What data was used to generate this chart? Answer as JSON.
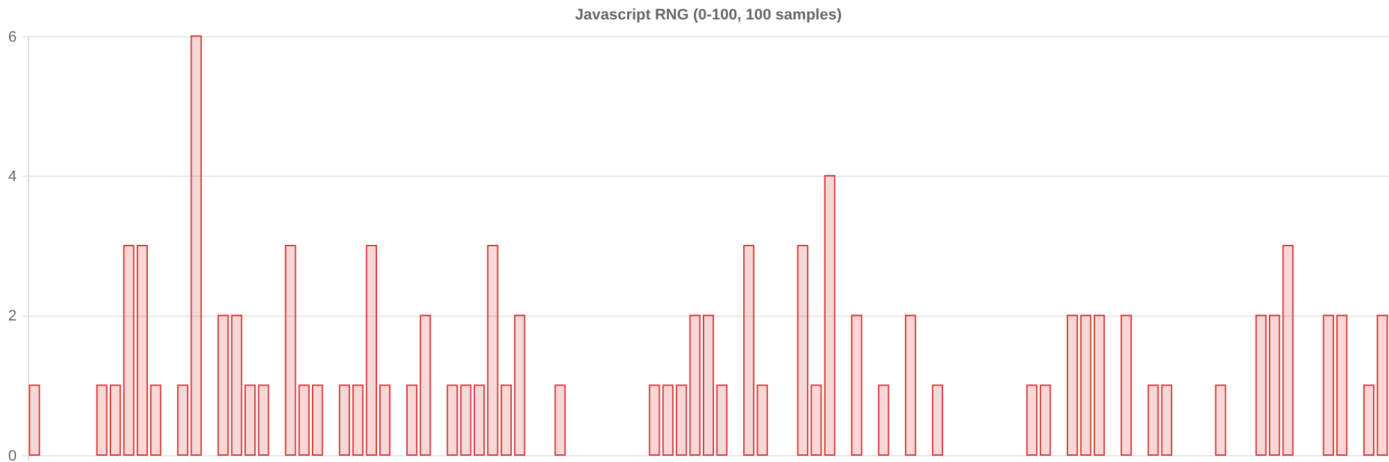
{
  "chart_data": {
    "type": "bar",
    "title": "Javascript RNG (0-100, 100 samples)",
    "categories": [
      null,
      null,
      null,
      null,
      null,
      null,
      null,
      null,
      null,
      null,
      null,
      null,
      null,
      null,
      null,
      null,
      null,
      null,
      null,
      null,
      null,
      null,
      null,
      null,
      null,
      null,
      null,
      null,
      null,
      null,
      null,
      null,
      null,
      null,
      null,
      null,
      null,
      null,
      null,
      null,
      null,
      null,
      null,
      null,
      null,
      null,
      null,
      null,
      null,
      null,
      null,
      null,
      null,
      null,
      null,
      null,
      null,
      null,
      null,
      null,
      null,
      null,
      null,
      null,
      null,
      null,
      null,
      null,
      null,
      null,
      null,
      null,
      null,
      null,
      null,
      null,
      null,
      null,
      null,
      null,
      null,
      null,
      null,
      null,
      null,
      null,
      null,
      null,
      null,
      null,
      null,
      null,
      null,
      null,
      null,
      null,
      null,
      null,
      null,
      null,
      null
    ],
    "values": [
      1,
      0,
      0,
      0,
      0,
      1,
      1,
      3,
      3,
      1,
      0,
      1,
      6,
      0,
      2,
      2,
      1,
      1,
      0,
      3,
      1,
      1,
      0,
      1,
      1,
      3,
      1,
      0,
      1,
      2,
      0,
      1,
      1,
      1,
      3,
      1,
      2,
      0,
      0,
      1,
      0,
      0,
      0,
      0,
      0,
      0,
      1,
      1,
      1,
      2,
      2,
      1,
      0,
      3,
      1,
      0,
      0,
      3,
      1,
      4,
      0,
      2,
      0,
      1,
      0,
      2,
      0,
      1,
      0,
      0,
      0,
      0,
      0,
      0,
      1,
      1,
      0,
      2,
      2,
      2,
      0,
      2,
      0,
      1,
      1,
      0,
      0,
      0,
      1,
      0,
      0,
      2,
      2,
      3,
      0,
      0,
      2,
      2,
      0,
      1,
      2
    ],
    "color": "#d93a3a",
    "ylim": [
      0,
      6
    ],
    "yticks": [
      0,
      2,
      4,
      6
    ],
    "grid": "y",
    "tick_labels": "y"
  }
}
